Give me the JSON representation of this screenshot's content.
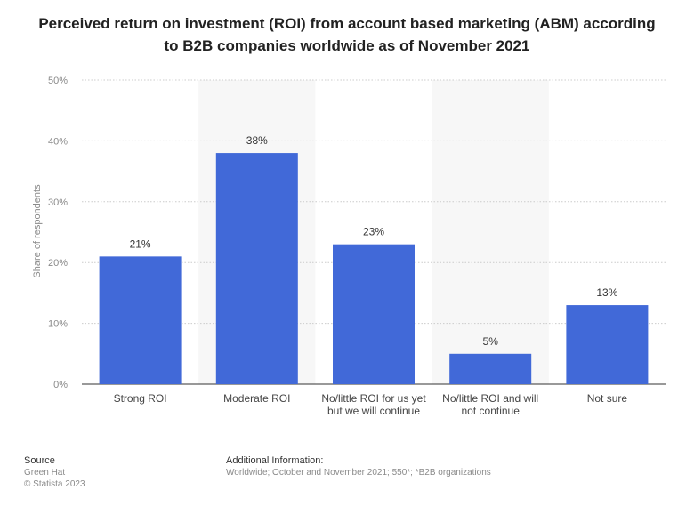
{
  "chart_data": {
    "type": "bar",
    "title": "Perceived return on investment (ROI) from account based marketing (ABM) according to B2B companies worldwide as of November 2021",
    "categories": [
      "Strong ROI",
      "Moderate ROI",
      "No/little ROI for us yet but we will continue",
      "No/little ROI and will not continue",
      "Not sure"
    ],
    "values": [
      21,
      38,
      23,
      5,
      13
    ],
    "value_labels": [
      "21%",
      "38%",
      "23%",
      "5%",
      "13%"
    ],
    "ylabel": "Share of respondents",
    "ylim": [
      0,
      50
    ],
    "yticks": [
      "0%",
      "10%",
      "20%",
      "30%",
      "40%",
      "50%"
    ],
    "grid": true,
    "bar_color": "#4169d8"
  },
  "footer": {
    "source_heading": "Source",
    "source_lines": [
      "Green Hat",
      "© Statista 2023"
    ],
    "info_heading": "Additional Information:",
    "info_text": "Worldwide; October and November 2021; 550*; *B2B organizations"
  }
}
